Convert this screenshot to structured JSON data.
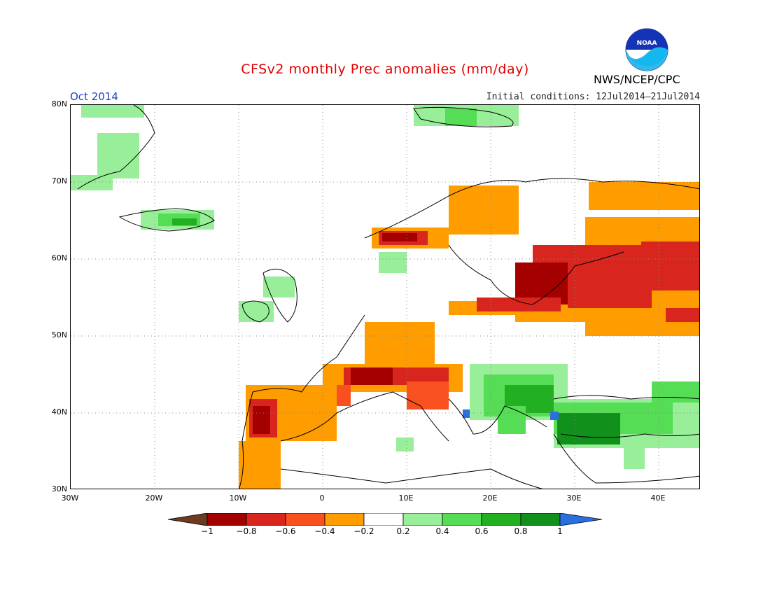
{
  "header": {
    "title": "CFSv2 monthly Prec anomalies (mm/day)",
    "period": "Oct 2014",
    "initial_conditions": "Initial conditions: 12Jul2014–21Jul2014",
    "org": "NWS/NCEP/CPC",
    "logo_text": "NOAA"
  },
  "map": {
    "lon_labels": [
      "30W",
      "20W",
      "10W",
      "0",
      "10E",
      "20E",
      "30E",
      "40E"
    ],
    "lat_labels": [
      "80N",
      "70N",
      "60N",
      "50N",
      "40N",
      "30N"
    ],
    "lon_range": [
      -30,
      45
    ],
    "lat_range": [
      30,
      80
    ],
    "grid": "dotted",
    "anomaly_regions": [
      {
        "name": "Eastern Europe / western Russia",
        "anomaly": "-0.8 to -1",
        "color": "#b40000"
      },
      {
        "name": "Western Russia east",
        "anomaly": "-0.2 to -0.4",
        "color": "#ff9900"
      },
      {
        "name": "Norway coast",
        "anomaly": "-0.6 to -0.8",
        "color": "#c81010"
      },
      {
        "name": "Portugal / western Iberia",
        "anomaly": "-0.6 to -0.8",
        "color": "#c81010"
      },
      {
        "name": "Southern France / northern Italy",
        "anomaly": "-0.6 to -0.8",
        "color": "#c81010"
      },
      {
        "name": "Balkans",
        "anomaly": "0.4 to 0.8",
        "color": "#22b022"
      },
      {
        "name": "Turkey",
        "anomaly": "0.6 to 1",
        "color": "#11901c"
      },
      {
        "name": "Greenland / Svalbard / Iceland",
        "anomaly": "0.2 to 0.6",
        "color": "#5ad75a"
      }
    ]
  },
  "colorbar": {
    "labels": [
      "−1",
      "−0.8",
      "−0.6",
      "−0.4",
      "−0.2",
      "0.2",
      "0.4",
      "0.6",
      "0.8",
      "1"
    ],
    "colors": [
      "#6e3a22",
      "#a50000",
      "#d8261f",
      "#f8501e",
      "#ff9d00",
      "#ffffff",
      "#99ee99",
      "#55dd55",
      "#22b022",
      "#11901c",
      "#2a6fe0"
    ]
  }
}
